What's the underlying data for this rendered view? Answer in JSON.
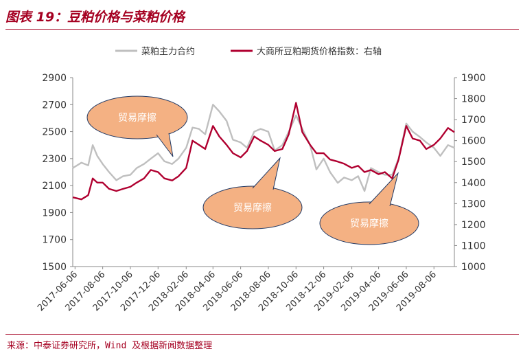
{
  "header": {
    "title": "图表 19：豆粕价格与菜粕价格"
  },
  "footer": {
    "source": "来源：中泰证券研究所，Wind 及根据新闻数据整理"
  },
  "colors": {
    "series_gray": "#bfbfbf",
    "series_red": "#b00030",
    "bubble_fill": "#f4b183",
    "bubble_stroke": "#1f3864",
    "accent": "#a50021"
  },
  "chart_data": {
    "type": "line",
    "legend_position": "top",
    "grid": false,
    "y_left": {
      "min": 1500,
      "max": 2900,
      "ticks": [
        "1500",
        "1700",
        "1900",
        "2100",
        "2300",
        "2500",
        "2700",
        "2900"
      ]
    },
    "y_right": {
      "min": 1000,
      "max": 1900,
      "ticks": [
        "1000",
        "1100",
        "1200",
        "1300",
        "1400",
        "1500",
        "1600",
        "1700",
        "1800",
        "1900"
      ]
    },
    "x_ticks": [
      "2017-06-06",
      "2017-08-06",
      "2017-10-06",
      "2017-12-06",
      "2018-02-06",
      "2018-04-06",
      "2018-06-06",
      "2018-08-06",
      "2018-10-06",
      "2018-12-06",
      "2019-02-06",
      "2019-04-06",
      "2019-06-06",
      "2019-08-06"
    ],
    "x_start": "2017-06-01",
    "x_end": "2019-09-20",
    "series": [
      {
        "name": "菜粕主力合约",
        "axis": "left",
        "color": "#bfbfbf",
        "points": [
          [
            "2017-06-01",
            2230
          ],
          [
            "2017-06-20",
            2270
          ],
          [
            "2017-07-05",
            2250
          ],
          [
            "2017-07-15",
            2400
          ],
          [
            "2017-07-25",
            2320
          ],
          [
            "2017-08-06",
            2260
          ],
          [
            "2017-08-20",
            2200
          ],
          [
            "2017-09-05",
            2140
          ],
          [
            "2017-09-20",
            2170
          ],
          [
            "2017-10-06",
            2180
          ],
          [
            "2017-10-20",
            2230
          ],
          [
            "2017-11-05",
            2260
          ],
          [
            "2017-11-20",
            2300
          ],
          [
            "2017-12-06",
            2340
          ],
          [
            "2017-12-20",
            2280
          ],
          [
            "2018-01-06",
            2260
          ],
          [
            "2018-01-20",
            2300
          ],
          [
            "2018-02-06",
            2380
          ],
          [
            "2018-02-20",
            2530
          ],
          [
            "2018-03-06",
            2520
          ],
          [
            "2018-03-20",
            2480
          ],
          [
            "2018-04-06",
            2700
          ],
          [
            "2018-04-20",
            2650
          ],
          [
            "2018-05-06",
            2580
          ],
          [
            "2018-05-20",
            2440
          ],
          [
            "2018-06-06",
            2420
          ],
          [
            "2018-06-20",
            2380
          ],
          [
            "2018-07-06",
            2500
          ],
          [
            "2018-07-20",
            2520
          ],
          [
            "2018-08-06",
            2500
          ],
          [
            "2018-08-20",
            2360
          ],
          [
            "2018-09-06",
            2400
          ],
          [
            "2018-09-20",
            2500
          ],
          [
            "2018-10-06",
            2620
          ],
          [
            "2018-10-20",
            2520
          ],
          [
            "2018-11-06",
            2400
          ],
          [
            "2018-11-20",
            2220
          ],
          [
            "2018-12-06",
            2300
          ],
          [
            "2018-12-20",
            2200
          ],
          [
            "2019-01-06",
            2120
          ],
          [
            "2019-01-20",
            2160
          ],
          [
            "2019-02-06",
            2140
          ],
          [
            "2019-02-20",
            2170
          ],
          [
            "2019-03-06",
            2060
          ],
          [
            "2019-03-20",
            2230
          ],
          [
            "2019-04-06",
            2200
          ],
          [
            "2019-04-20",
            2180
          ],
          [
            "2019-05-06",
            2180
          ],
          [
            "2019-05-20",
            2300
          ],
          [
            "2019-06-06",
            2560
          ],
          [
            "2019-06-20",
            2500
          ],
          [
            "2019-07-06",
            2460
          ],
          [
            "2019-07-20",
            2420
          ],
          [
            "2019-08-06",
            2380
          ],
          [
            "2019-08-20",
            2320
          ],
          [
            "2019-09-06",
            2400
          ],
          [
            "2019-09-20",
            2380
          ]
        ]
      },
      {
        "name": "大商所豆粕期货价格指数：右轴",
        "axis": "right",
        "color": "#b00030",
        "points": [
          [
            "2017-06-01",
            1330
          ],
          [
            "2017-06-20",
            1320
          ],
          [
            "2017-07-05",
            1340
          ],
          [
            "2017-07-15",
            1420
          ],
          [
            "2017-07-25",
            1400
          ],
          [
            "2017-08-06",
            1400
          ],
          [
            "2017-08-20",
            1370
          ],
          [
            "2017-09-05",
            1360
          ],
          [
            "2017-09-20",
            1370
          ],
          [
            "2017-10-06",
            1380
          ],
          [
            "2017-10-20",
            1400
          ],
          [
            "2017-11-05",
            1420
          ],
          [
            "2017-11-20",
            1460
          ],
          [
            "2017-12-06",
            1450
          ],
          [
            "2017-12-20",
            1420
          ],
          [
            "2018-01-06",
            1410
          ],
          [
            "2018-01-20",
            1430
          ],
          [
            "2018-02-06",
            1470
          ],
          [
            "2018-02-20",
            1600
          ],
          [
            "2018-03-06",
            1580
          ],
          [
            "2018-03-20",
            1560
          ],
          [
            "2018-04-06",
            1670
          ],
          [
            "2018-04-20",
            1620
          ],
          [
            "2018-05-06",
            1580
          ],
          [
            "2018-05-20",
            1540
          ],
          [
            "2018-06-06",
            1520
          ],
          [
            "2018-06-20",
            1550
          ],
          [
            "2018-07-06",
            1620
          ],
          [
            "2018-07-20",
            1600
          ],
          [
            "2018-08-06",
            1580
          ],
          [
            "2018-08-20",
            1550
          ],
          [
            "2018-09-06",
            1560
          ],
          [
            "2018-09-20",
            1630
          ],
          [
            "2018-10-06",
            1780
          ],
          [
            "2018-10-20",
            1640
          ],
          [
            "2018-11-06",
            1580
          ],
          [
            "2018-11-20",
            1540
          ],
          [
            "2018-12-06",
            1540
          ],
          [
            "2018-12-20",
            1510
          ],
          [
            "2019-01-06",
            1500
          ],
          [
            "2019-01-20",
            1490
          ],
          [
            "2019-02-06",
            1470
          ],
          [
            "2019-02-20",
            1480
          ],
          [
            "2019-03-06",
            1450
          ],
          [
            "2019-03-20",
            1460
          ],
          [
            "2019-04-06",
            1440
          ],
          [
            "2019-04-20",
            1450
          ],
          [
            "2019-05-06",
            1420
          ],
          [
            "2019-05-20",
            1510
          ],
          [
            "2019-06-06",
            1670
          ],
          [
            "2019-06-20",
            1610
          ],
          [
            "2019-07-06",
            1600
          ],
          [
            "2019-07-20",
            1560
          ],
          [
            "2019-08-06",
            1580
          ],
          [
            "2019-08-20",
            1610
          ],
          [
            "2019-09-06",
            1660
          ],
          [
            "2019-09-20",
            1640
          ]
        ]
      }
    ],
    "annotations": [
      {
        "text": "贸易摩擦",
        "target_date": "2017-12-20"
      },
      {
        "text": "贸易摩擦",
        "target_date": "2018-08-15"
      },
      {
        "text": "贸易摩擦",
        "target_date": "2019-05-15"
      }
    ]
  }
}
